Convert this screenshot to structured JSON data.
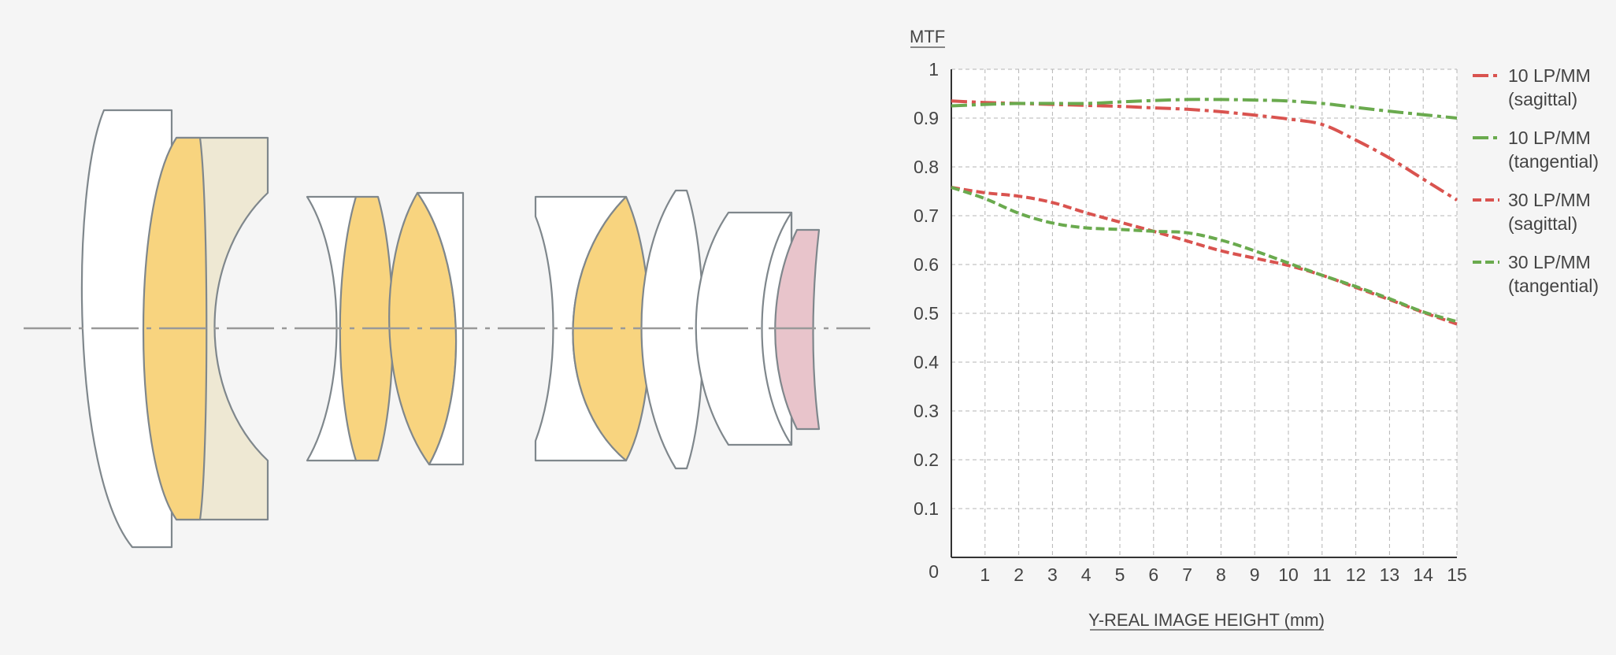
{
  "lens_diagram": {
    "colors": {
      "glass": "#ffffff",
      "edge": "#7f878c",
      "yellow": "#f8d47f",
      "cream": "#eee8d3",
      "pink": "#e8c4cb",
      "axis": "#999999"
    }
  },
  "chart_data": {
    "type": "line",
    "title": "MTF",
    "xlabel": "Y-REAL IMAGE HEIGHT (mm)",
    "ylabel": "MTF",
    "xlim": [
      0,
      15
    ],
    "ylim": [
      0,
      1
    ],
    "x_ticks": [
      "1",
      "2",
      "3",
      "4",
      "5",
      "6",
      "7",
      "8",
      "9",
      "10",
      "11",
      "12",
      "13",
      "14",
      "15"
    ],
    "y_ticks": [
      "0",
      "0.1",
      "0.2",
      "0.3",
      "0.4",
      "0.5",
      "0.6",
      "0.7",
      "0.8",
      "0.9",
      "1"
    ],
    "grid": true,
    "legend_position": "right",
    "series": [
      {
        "name": "10 LP/MM",
        "sub": "(sagittal)",
        "color": "#d9534f",
        "dash": "dashdot",
        "x": [
          0,
          1,
          2,
          3,
          4,
          5,
          6,
          7,
          8,
          9,
          10,
          11,
          12,
          13,
          14,
          15
        ],
        "y": [
          0.935,
          0.932,
          0.93,
          0.928,
          0.926,
          0.924,
          0.921,
          0.918,
          0.913,
          0.906,
          0.898,
          0.887,
          0.855,
          0.818,
          0.775,
          0.732
        ]
      },
      {
        "name": "10 LP/MM",
        "sub": "(tangential)",
        "color": "#6aaa4e",
        "dash": "dashdot",
        "x": [
          0,
          1,
          2,
          3,
          4,
          5,
          6,
          7,
          8,
          9,
          10,
          11,
          12,
          13,
          14,
          15
        ],
        "y": [
          0.925,
          0.928,
          0.93,
          0.93,
          0.93,
          0.933,
          0.936,
          0.938,
          0.938,
          0.937,
          0.935,
          0.93,
          0.922,
          0.914,
          0.907,
          0.9
        ]
      },
      {
        "name": "30 LP/MM",
        "sub": "(sagittal)",
        "color": "#d9534f",
        "dash": "dashed",
        "x": [
          0,
          1,
          2,
          3,
          4,
          5,
          6,
          7,
          8,
          9,
          10,
          11,
          12,
          13,
          14,
          15
        ],
        "y": [
          0.758,
          0.747,
          0.74,
          0.727,
          0.706,
          0.687,
          0.668,
          0.648,
          0.628,
          0.613,
          0.598,
          0.578,
          0.553,
          0.528,
          0.502,
          0.478
        ]
      },
      {
        "name": "30 LP/MM",
        "sub": "(tangential)",
        "color": "#6aaa4e",
        "dash": "dashed",
        "x": [
          0,
          1,
          2,
          3,
          4,
          5,
          6,
          7,
          8,
          9,
          10,
          11,
          12,
          13,
          14,
          15
        ],
        "y": [
          0.758,
          0.735,
          0.705,
          0.685,
          0.675,
          0.672,
          0.668,
          0.665,
          0.65,
          0.628,
          0.603,
          0.578,
          0.555,
          0.53,
          0.503,
          0.483
        ]
      }
    ]
  }
}
